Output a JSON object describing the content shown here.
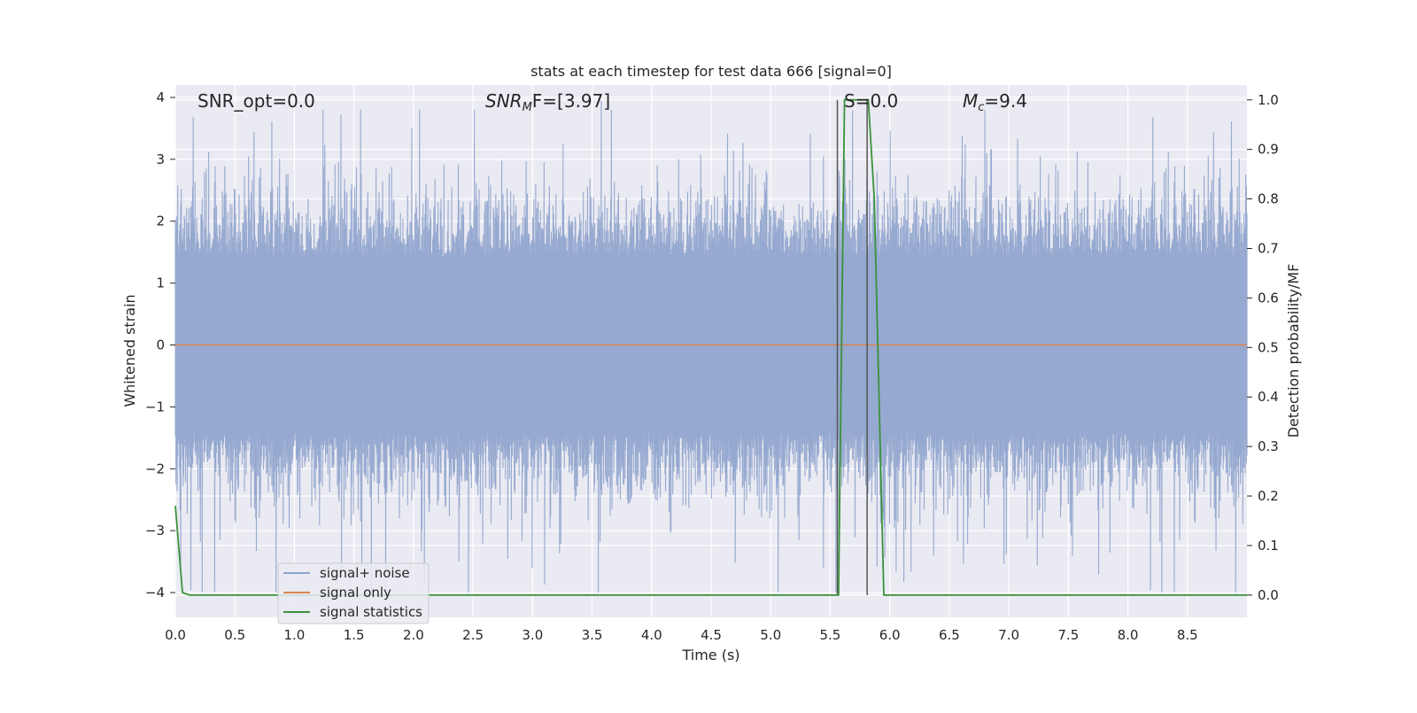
{
  "chart_data": {
    "type": "line",
    "title": "stats at each timestep for test data 666 [signal=0]",
    "xlabel": "Time (s)",
    "ylabel": "Whitened strain",
    "y2label": "Detection probability/MF",
    "xlim": [
      0.0,
      9.0
    ],
    "ylim": [
      -4.4,
      4.2
    ],
    "y2lim": [
      -0.045,
      1.03
    ],
    "x_ticks": [
      "0.0",
      "0.5",
      "1.0",
      "1.5",
      "2.0",
      "2.5",
      "3.0",
      "3.5",
      "4.0",
      "4.5",
      "5.0",
      "5.5",
      "6.0",
      "6.5",
      "7.0",
      "7.5",
      "8.0",
      "8.5"
    ],
    "y_ticks": [
      "-4",
      "-3",
      "-2",
      "-1",
      "0",
      "1",
      "2",
      "3",
      "4"
    ],
    "y2_ticks": [
      "0.0",
      "0.1",
      "0.2",
      "0.3",
      "0.4",
      "0.5",
      "0.6",
      "0.7",
      "0.8",
      "0.9",
      "1.0"
    ],
    "grid": true,
    "legend": {
      "position": "lower-left",
      "entries": [
        "signal+ noise",
        "signal only",
        "signal statistics"
      ]
    },
    "annotations": {
      "snr_opt": "SNR_opt=0.0",
      "snr_mf_main": "SNR",
      "snr_mf_sub": "M",
      "snr_mf_rest": "F=[3.97]",
      "s_label": "S=0.0",
      "mc_main": "M",
      "mc_sub": "c",
      "mc_rest": "=9.4"
    },
    "series": [
      {
        "name": "signal+ noise",
        "axis": "left",
        "color": "#91a5cd",
        "noise_envelope": {
          "t_start": 0.0,
          "t_end": 9.0,
          "typical_amplitude": 1.5,
          "max": 3.8,
          "min": -4.0
        }
      },
      {
        "name": "signal only",
        "axis": "left",
        "color": "#dd8452",
        "x": [
          0.0,
          9.0
        ],
        "y": [
          0.0,
          0.0
        ]
      },
      {
        "name": "signal statistics",
        "axis": "right",
        "color": "#3a923a",
        "x": [
          0.0,
          0.06,
          0.12,
          5.52,
          5.57,
          5.62,
          5.82,
          5.87,
          5.95,
          9.0
        ],
        "y": [
          0.18,
          0.005,
          0.0,
          0.0,
          0.0,
          1.0,
          1.0,
          0.8,
          0.0,
          0.0
        ]
      }
    ],
    "vertical_lines": [
      {
        "x": 5.56,
        "y2_from": 0.0,
        "y2_to": 1.0,
        "color": "#555555"
      },
      {
        "x": 5.81,
        "y2_from": 0.0,
        "y2_to": 1.0,
        "color": "#555555"
      }
    ],
    "colors": {
      "plot_background": "#eaeaf2",
      "grid": "#ffffff"
    }
  }
}
